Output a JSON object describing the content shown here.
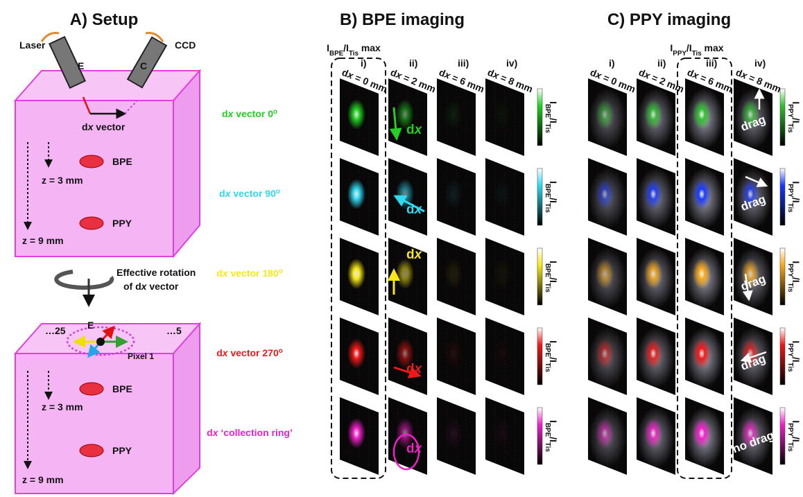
{
  "panelA": {
    "title": "A) Setup",
    "laser": "Laser",
    "ccd": "CCD",
    "e": "E",
    "c": "C",
    "dx_vector": [
      "d",
      "x",
      " vector"
    ],
    "bpe": "BPE",
    "ppy": "PPY",
    "z3": "z = 3 mm",
    "z9": "z = 9 mm",
    "rotation_line1": "Effective rotation",
    "rotation_line2": [
      "of d",
      "x",
      " vector"
    ],
    "pixel25": "…25",
    "pixel5": "…5",
    "e_top": "E",
    "pixel1": "Pixel 1",
    "bpe_lower": "BPE",
    "ppy_lower": "PPY",
    "z3_lower": "z = 3 mm",
    "z9_lower": "z = 9 mm"
  },
  "panelB": {
    "title": "B) BPE imaging",
    "max_label": [
      "I",
      "BPE",
      "/I",
      "Tis",
      " max"
    ],
    "columns": [
      {
        "index": "i)",
        "label": [
          "d",
          "x",
          " = 0 mm"
        ]
      },
      {
        "index": "ii)",
        "label": [
          "d",
          "x",
          " = 2 mm"
        ]
      },
      {
        "index": "iii)",
        "label": [
          "d",
          "x",
          " = 6 mm"
        ]
      },
      {
        "index": "iv)",
        "label": [
          "d",
          "x",
          " = 8 mm"
        ]
      }
    ],
    "rows": [
      [
        "d",
        "x",
        " vector 0",
        "o"
      ],
      [
        "d",
        "x",
        " vector 90",
        "o"
      ],
      [
        "d",
        "x",
        " vector 180",
        "o"
      ],
      [
        "d",
        "x",
        " vector 270",
        "o"
      ],
      [
        "d",
        "x",
        " ‘collection ring’"
      ]
    ],
    "colorbar_label": [
      "I",
      "BPE",
      "/I",
      "Tis"
    ],
    "annotation": [
      "d",
      "x"
    ]
  },
  "panelC": {
    "title": "C) PPY imaging",
    "max_label": [
      "I",
      "PPY",
      "/I",
      "Tis",
      " max"
    ],
    "columns": [
      {
        "index": "i)",
        "label": [
          "d",
          "x",
          " = 0 mm"
        ]
      },
      {
        "index": "ii)",
        "label": [
          "d",
          "x",
          " = 2 mm"
        ]
      },
      {
        "index": "iii)",
        "label": [
          "d",
          "x",
          " = 6 mm"
        ]
      },
      {
        "index": "iv)",
        "label": [
          "d",
          "x",
          " = 8 mm"
        ]
      }
    ],
    "colorbar_label": [
      "I",
      "PPY",
      "/I",
      "Tis"
    ],
    "annotations": [
      "drag",
      "drag",
      "drag",
      "drag",
      "no drag"
    ]
  }
}
